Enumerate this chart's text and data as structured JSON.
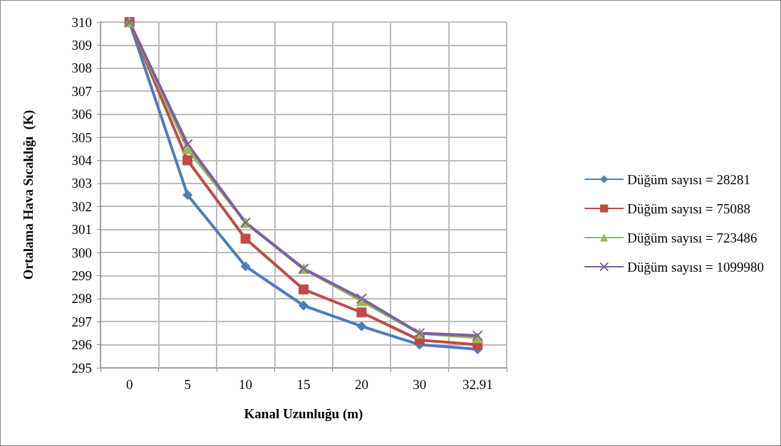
{
  "chart_data": {
    "type": "line",
    "xlabel": "Kanal Uzunluğu (m)",
    "ylabel": "Ortalama Hava Sıcaklığı  (K)",
    "categories": [
      "0",
      "5",
      "10",
      "15",
      "20",
      "30",
      "32.91"
    ],
    "ylim": [
      295,
      310
    ],
    "yticks": [
      295,
      296,
      297,
      298,
      299,
      300,
      301,
      302,
      303,
      304,
      305,
      306,
      307,
      308,
      309,
      310
    ],
    "grid": true,
    "legend": "right",
    "series": [
      {
        "name": "Düğüm sayısı = 28281",
        "color": "#4a7ebb",
        "marker": "diamond",
        "values": [
          310,
          302.5,
          299.4,
          297.7,
          296.8,
          296.0,
          295.8
        ]
      },
      {
        "name": "Düğüm sayısı = 75088",
        "color": "#be4b48",
        "marker": "square",
        "values": [
          310,
          304.0,
          300.6,
          298.4,
          297.4,
          296.2,
          296.0
        ]
      },
      {
        "name": "Düğüm sayısı = 723486",
        "color": "#98b954",
        "marker": "triangle",
        "values": [
          310,
          304.5,
          301.3,
          299.3,
          297.9,
          296.5,
          296.3
        ]
      },
      {
        "name": "Düğüm sayısı = 1099980",
        "color": "#7d60a0",
        "marker": "cross",
        "values": [
          310,
          304.7,
          301.3,
          299.3,
          298.0,
          296.5,
          296.4
        ]
      }
    ]
  }
}
